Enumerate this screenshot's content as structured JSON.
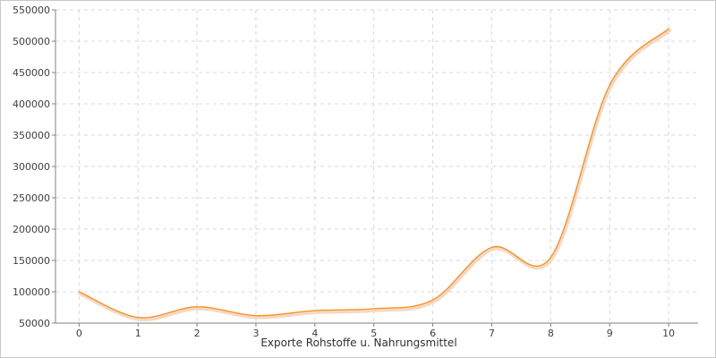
{
  "chart_data": {
    "type": "line",
    "title": "",
    "xlabel": "Exporte Rohstoffe u. Nahrungsmittel",
    "ylabel": "",
    "x": [
      0,
      1,
      2,
      3,
      4,
      5,
      6,
      7,
      8,
      9,
      10
    ],
    "x_tick_labels": [
      "0",
      "1",
      "2",
      "3",
      "4",
      "5",
      "6",
      "7",
      "8",
      "9",
      "10"
    ],
    "y_tick_labels": [
      "50000",
      "100000",
      "150000",
      "200000",
      "250000",
      "300000",
      "350000",
      "400000",
      "450000",
      "500000",
      "550000"
    ],
    "series": [
      {
        "values": [
          100000,
          59000,
          76000,
          62000,
          70000,
          73000,
          87000,
          171000,
          155000,
          430000,
          520000
        ],
        "color": "#ff8c1a"
      }
    ],
    "xlim": [
      -0.4,
      10.5
    ],
    "ylim": [
      50000,
      550000
    ],
    "grid": true,
    "legend": "none"
  }
}
